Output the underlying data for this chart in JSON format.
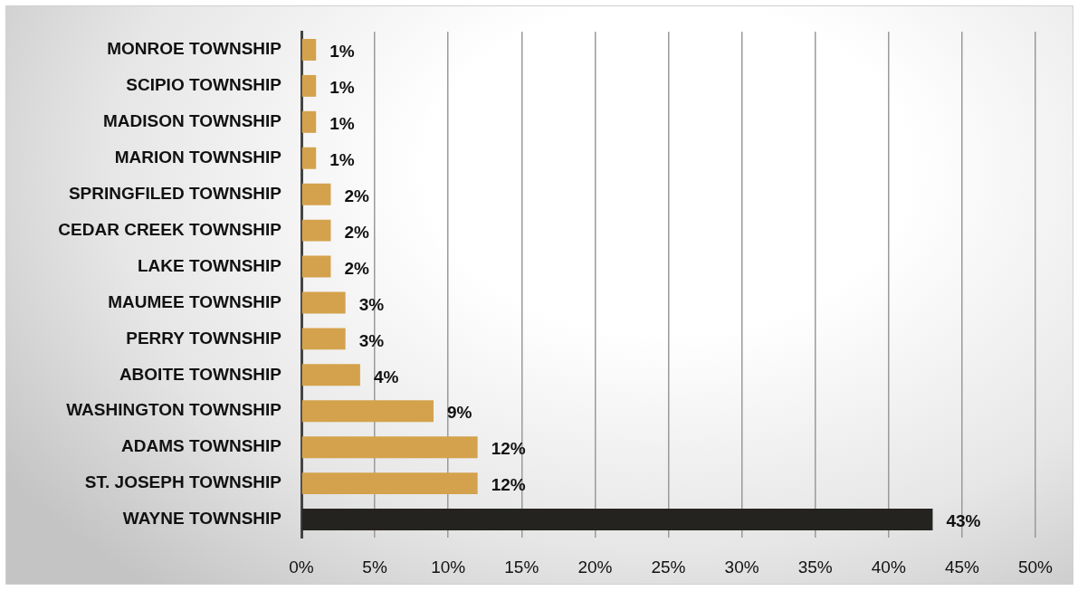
{
  "chart_data": {
    "type": "bar",
    "orientation": "horizontal",
    "categories": [
      "MONROE TOWNSHIP",
      "SCIPIO TOWNSHIP",
      "MADISON TOWNSHIP",
      "MARION TOWNSHIP",
      "SPRINGFILED TOWNSHIP",
      "CEDAR CREEK TOWNSHIP",
      "LAKE TOWNSHIP",
      "MAUMEE TOWNSHIP",
      "PERRY TOWNSHIP",
      "ABOITE TOWNSHIP",
      "WASHINGTON TOWNSHIP",
      "ADAMS TOWNSHIP",
      "ST. JOSEPH TOWNSHIP",
      "WAYNE TOWNSHIP"
    ],
    "values": [
      1,
      1,
      1,
      1,
      2,
      2,
      2,
      3,
      3,
      4,
      9,
      12,
      12,
      43
    ],
    "value_labels": [
      "1%",
      "1%",
      "1%",
      "1%",
      "2%",
      "2%",
      "2%",
      "3%",
      "3%",
      "4%",
      "9%",
      "12%",
      "12%",
      "43%"
    ],
    "colors": [
      "#d4a24c",
      "#d4a24c",
      "#d4a24c",
      "#d4a24c",
      "#d4a24c",
      "#d4a24c",
      "#d4a24c",
      "#d4a24c",
      "#d4a24c",
      "#d4a24c",
      "#d4a24c",
      "#d4a24c",
      "#d4a24c",
      "#252320"
    ],
    "xlim": [
      0,
      50
    ],
    "xticks": [
      {
        "value": 0,
        "label": "0%"
      },
      {
        "value": 5,
        "label": "5%"
      },
      {
        "value": 10,
        "label": "10%"
      },
      {
        "value": 15,
        "label": "15%"
      },
      {
        "value": 20,
        "label": "20%"
      },
      {
        "value": 25,
        "label": "25%"
      },
      {
        "value": 30,
        "label": "30%"
      },
      {
        "value": 35,
        "label": "35%"
      },
      {
        "value": 40,
        "label": "40%"
      },
      {
        "value": 45,
        "label": "45%"
      },
      {
        "value": 50,
        "label": "50%"
      }
    ],
    "grid": "x"
  }
}
